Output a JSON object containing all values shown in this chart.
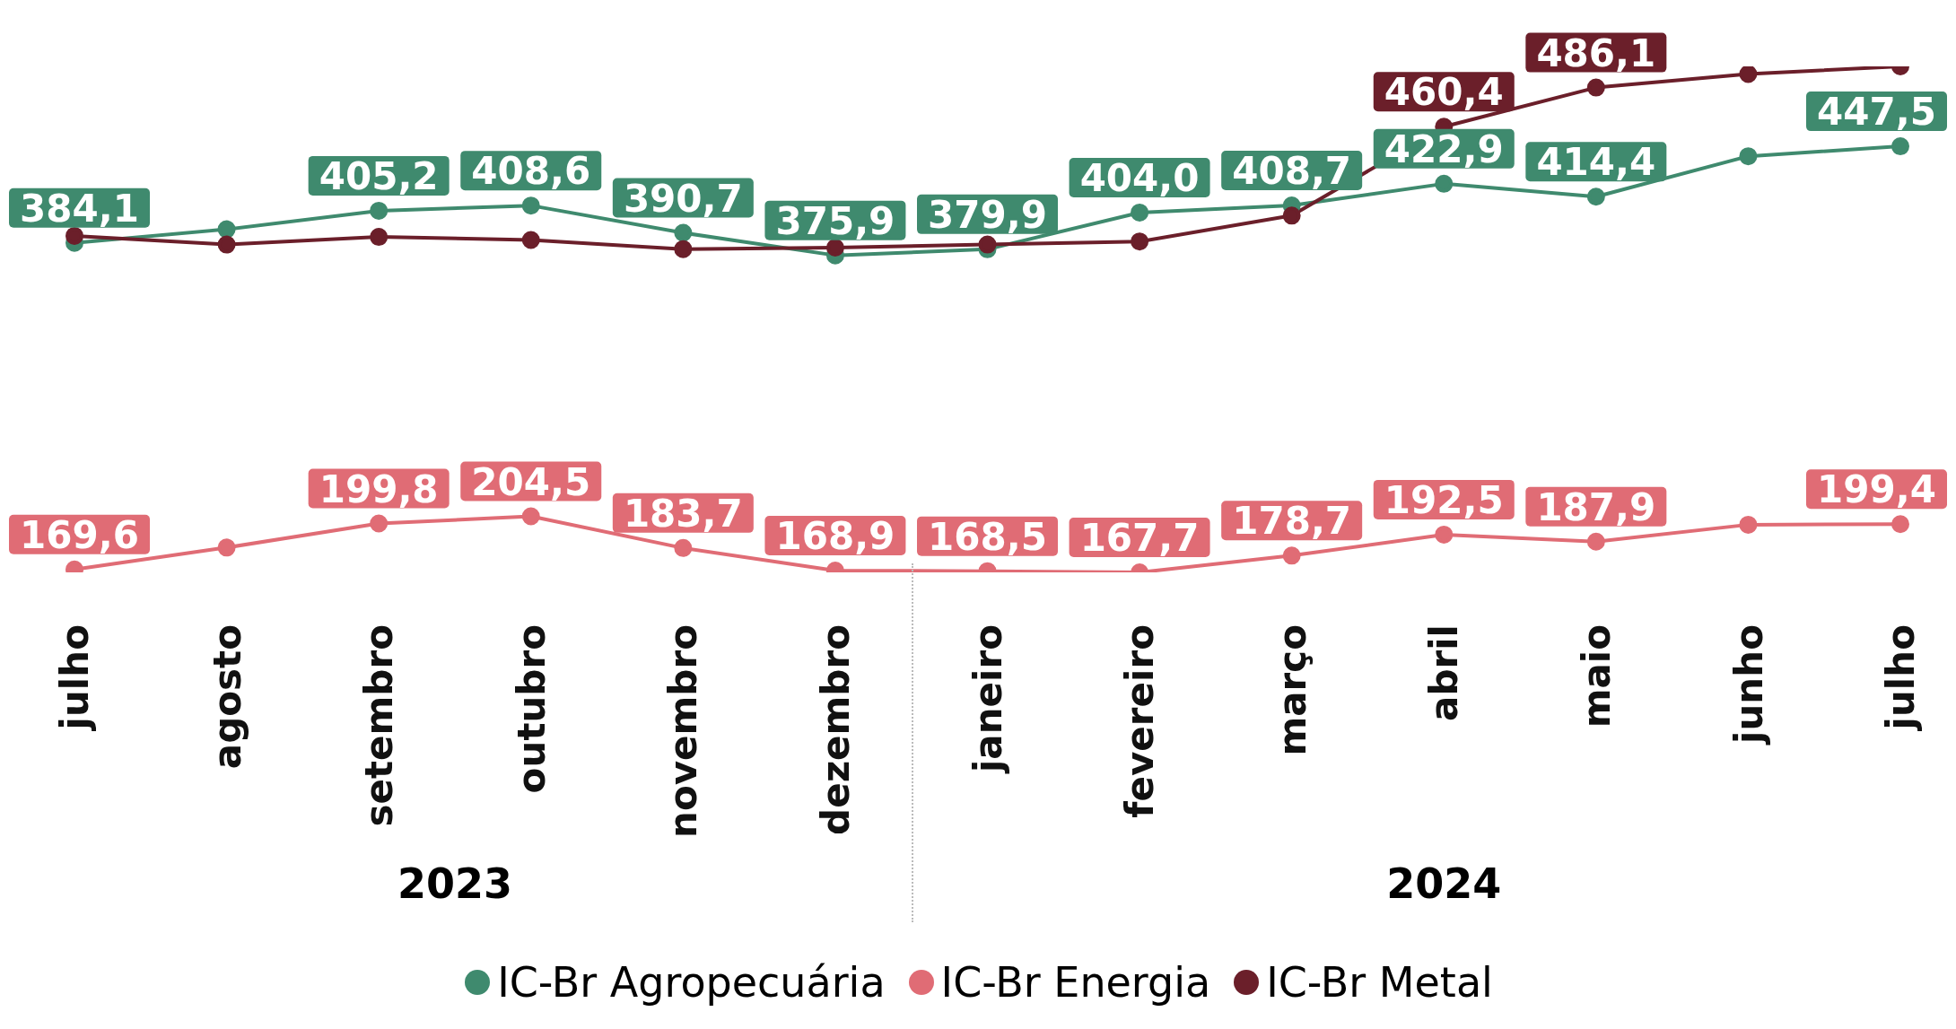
{
  "chart_data": {
    "type": "line",
    "categories": [
      "julho",
      "agosto",
      "setembro",
      "outubro",
      "novembro",
      "dezembro",
      "janeiro",
      "fevereiro",
      "março",
      "abril",
      "maio",
      "junho",
      "julho"
    ],
    "annotations": [
      "2023",
      "2024"
    ],
    "series": [
      {
        "name": "IC-Br Agropecuária",
        "color": "#3f8a6e",
        "values": [
          384.1,
          393,
          405.2,
          408.6,
          390.7,
          375.9,
          379.9,
          404.0,
          408.7,
          422.9,
          414.4,
          441,
          447.5
        ],
        "value_labels": [
          "384,1",
          null,
          "405,2",
          "408,6",
          "390,7",
          "375,9",
          "379,9",
          "404,0",
          "408,7",
          "422,9",
          "414,4",
          null,
          "447,5"
        ]
      },
      {
        "name": "IC-Br Energia",
        "color": "#e06c75",
        "values": [
          169.6,
          184,
          199.8,
          204.5,
          183.7,
          168.9,
          168.5,
          167.7,
          178.7,
          192.5,
          187.9,
          199,
          199.4
        ],
        "value_labels": [
          "169,6",
          null,
          "199,8",
          "204,5",
          "183,7",
          "168,9",
          "168,5",
          "167,7",
          "178,7",
          "192,5",
          "187,9",
          null,
          "199,4"
        ]
      },
      {
        "name": "IC-Br Metal",
        "color": "#6b1f2a",
        "values": [
          388.7,
          383,
          388,
          386,
          380,
          381,
          383,
          385,
          402,
          460.4,
          486.1,
          495,
          500
        ],
        "value_labels": [
          null,
          null,
          null,
          null,
          null,
          null,
          null,
          null,
          null,
          "460,4",
          "486,1",
          null,
          null
        ]
      }
    ],
    "legend": "bottom",
    "marker": "circle",
    "line_style": "solid",
    "grid": false
  }
}
